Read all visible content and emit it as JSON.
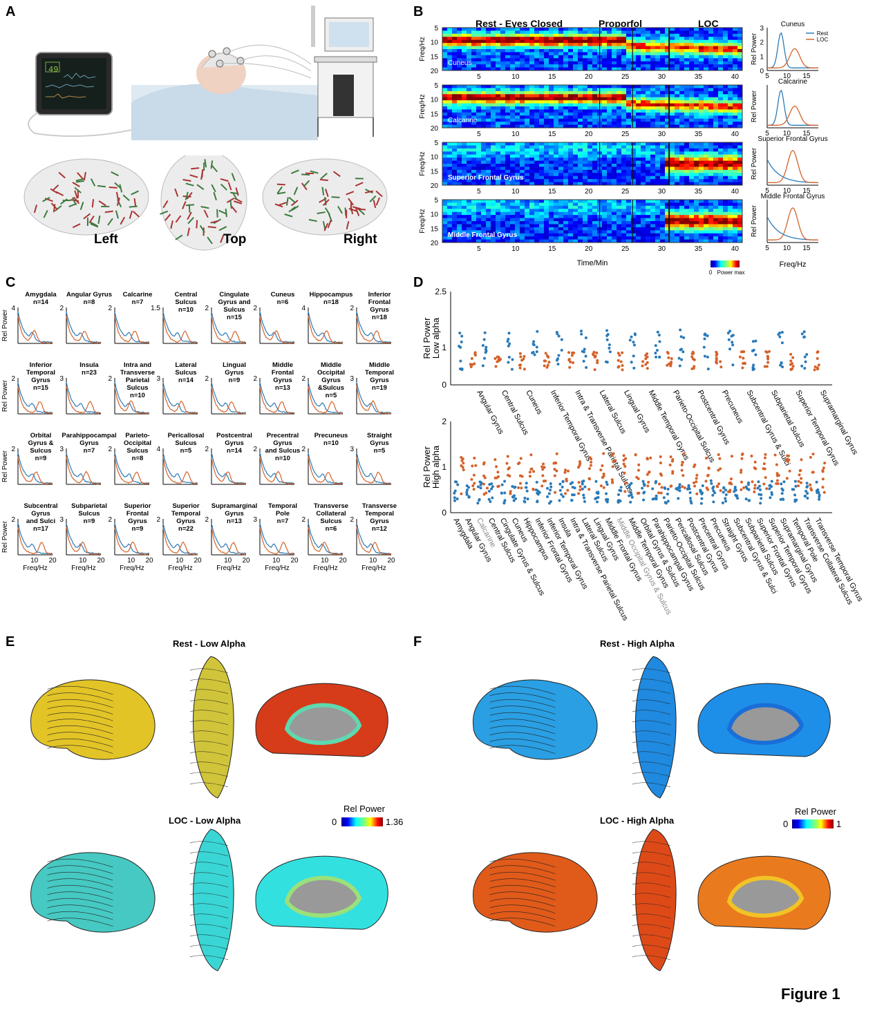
{
  "panels": {
    "A": "A",
    "B": "B",
    "C": "C",
    "D": "D",
    "E": "E",
    "F": "F"
  },
  "figure_label": "Figure 1",
  "panelA": {
    "monitor_value": "49",
    "views": [
      "Left",
      "Top",
      "Right"
    ]
  },
  "panelB": {
    "phases": [
      "Rest - Eyes Closed",
      "Proporfol",
      "LOC"
    ],
    "ylabel": "Freq/Hz",
    "yticks": [
      "5",
      "10",
      "15",
      "20"
    ],
    "xticks": [
      "5",
      "10",
      "15",
      "20",
      "25",
      "30",
      "35",
      "40"
    ],
    "xlabel": "Time/Min",
    "colorbar_label": "Power",
    "colorbar_min": "0",
    "colorbar_max": "max",
    "rows": [
      "Cuneus",
      "Calcarine",
      "Superior Frontal Gyrus",
      "Middle Frontal Gyrus"
    ],
    "spectrum_ylabel": "Rel Power",
    "spectrum_xlabel": "Freq/Hz",
    "spectrum_xticks": [
      "5",
      "10",
      "15"
    ],
    "spectrum_yticks": [
      "0",
      "1",
      "2",
      "3"
    ],
    "legend": [
      "Rest",
      "LOC"
    ],
    "colors": {
      "rest": "#2a7ab8",
      "loc": "#d4622a"
    }
  },
  "panelC": {
    "ylabel": "Rel Power",
    "xlabel": "Freq/Hz",
    "xticks": [
      "10",
      "20"
    ],
    "cells": [
      {
        "name": "Amygdala\nn=14",
        "ymax": "4"
      },
      {
        "name": "Angular Gyrus\nn=8",
        "ymax": "2"
      },
      {
        "name": "Calcarine\nn=7",
        "ymax": "2"
      },
      {
        "name": "Central\nSulcus\nn=10",
        "ymax": "1.5"
      },
      {
        "name": "Cingulate\nGyrus and\nSulcus\nn=15",
        "ymax": "2"
      },
      {
        "name": "Cuneus\nn=6",
        "ymax": "2"
      },
      {
        "name": "Hippocampus\nn=18",
        "ymax": "4"
      },
      {
        "name": "Inferior\nFrontal\nGyrus\nn=18",
        "ymax": "2"
      },
      {
        "name": "Inferior\nTemporal\nGyrus\nn=15",
        "ymax": "2"
      },
      {
        "name": "Insula\nn=23",
        "ymax": "3"
      },
      {
        "name": "Intra and\nTransverse\nParietal\nSulcus\nn=10",
        "ymax": "2"
      },
      {
        "name": "Lateral\nSulcus\nn=14",
        "ymax": "3"
      },
      {
        "name": "Lingual\nGyrus\nn=9",
        "ymax": "2"
      },
      {
        "name": "Middle\nFrontal\nGyrus\nn=13",
        "ymax": "2"
      },
      {
        "name": "Middle\nOccipital\nGyrus\n&Sulcus\nn=5",
        "ymax": "2"
      },
      {
        "name": "Middle\nTemporal\nGyrus\nn=19",
        "ymax": "3"
      },
      {
        "name": "Orbital\nGyrus &\nSulcus\nn=9",
        "ymax": "2"
      },
      {
        "name": "Parahippocampal\nGyrus\nn=7",
        "ymax": "3"
      },
      {
        "name": "Parieto-\nOccipital\nSulcus\nn=8",
        "ymax": "2"
      },
      {
        "name": "Pericallosal\nSulcus\nn=5",
        "ymax": "4"
      },
      {
        "name": "Postcentral\nGyrus\nn=14",
        "ymax": "2"
      },
      {
        "name": "Precentral\nGyrus\nand Sulcus\nn=10",
        "ymax": "2"
      },
      {
        "name": "Precuneus\nn=10",
        "ymax": "2"
      },
      {
        "name": "Straight\nGyrus\nn=5",
        "ymax": "3"
      },
      {
        "name": "Subcentral\nGyrus\nand Sulci\nn=17",
        "ymax": "2"
      },
      {
        "name": "Subparietal\nSulcus\nn=9",
        "ymax": "3"
      },
      {
        "name": "Superior\nFrontal\nGyrus\nn=9",
        "ymax": "2"
      },
      {
        "name": "Superior\nTemporal\nGyrus\nn=22",
        "ymax": "2"
      },
      {
        "name": "Supramarginal\nGyrus\nn=13",
        "ymax": "2"
      },
      {
        "name": "Temporal\nPole\nn=7",
        "ymax": "3"
      },
      {
        "name": "Transverse\nCollateral\nSulcus\nn=6",
        "ymax": "2"
      },
      {
        "name": "Transverse\nTemporal\nGyrus\nn=12",
        "ymax": "2"
      }
    ]
  },
  "panelD": {
    "top_ylabel": "Rel Power\nLow alpha",
    "top_yticks": [
      "0",
      "1",
      "2.5"
    ],
    "top_regions": [
      "Angular Gyrus",
      "Central Sulcus",
      "Cuneus",
      "Inferior Temporal Gyrus",
      "Intra & Transverse Parietal Sulcus",
      "Lateral Sulcus",
      "Lingual Gyrus",
      "Middle Temporal Gyrus",
      "Parieto-Occipital Sulcus",
      "Postcentral Gyrus",
      "Precuneus",
      "Subcentral Gyrus & Sulci",
      "Subparietal Sulcus",
      "Superior Temporal Gyrus",
      "Supramarginal Gyrus"
    ],
    "bottom_ylabel": "Rel Power\nHigh alpha",
    "bottom_yticks": [
      "0",
      "1",
      "2"
    ],
    "bottom_regions": [
      "Amygdala",
      "Angular Gyrus",
      "Calcarine",
      "Central Sulcus",
      "Cingulate Gyrus & Sulcus",
      "Cuneus",
      "Hippocampus",
      "Inferior Frontal Gyrus",
      "Inferior Temporal Gyrus",
      "Insula",
      "Intra & Transverse Parietal Sulcus",
      "Lateral Sulcus",
      "Lingual Gyrus",
      "Middle Frontal Gyrus",
      "Middle Occipital Gyrus & Sulcus",
      "Middle Temporal Gyrus",
      "Orbital Gyrus & Sulcus",
      "Parahippocampal Gyrus",
      "Parieto-Occipital Sulcus",
      "Pericallosal Sulcus",
      "Postcentral Gyrus",
      "Precentral Gyrus",
      "Precuneus",
      "Straight Gyrus",
      "Subcentral Gyrus & Sulci",
      "Subparietal Sulcus",
      "Superior Frontal Gyrus",
      "Superior Temporal Gyrus",
      "Supramarginal Gyrus",
      "Temporal Pole",
      "Transverse Collateral Sulcus",
      "Transverse Temporal Gyrus"
    ],
    "grey_regions": [
      "Calcarine",
      "Middle Occipital Gyrus & Sulcus"
    ]
  },
  "panelE": {
    "title_top": "Rest - Low Alpha",
    "title_bottom": "LOC - Low Alpha",
    "colorbar_label": "Rel Power",
    "colorbar_min": "0",
    "colorbar_max": "1.36"
  },
  "panelF": {
    "title_top": "Rest - High Alpha",
    "title_bottom": "LOC - High Alpha",
    "colorbar_label": "Rel Power",
    "colorbar_min": "0",
    "colorbar_max": "1"
  }
}
